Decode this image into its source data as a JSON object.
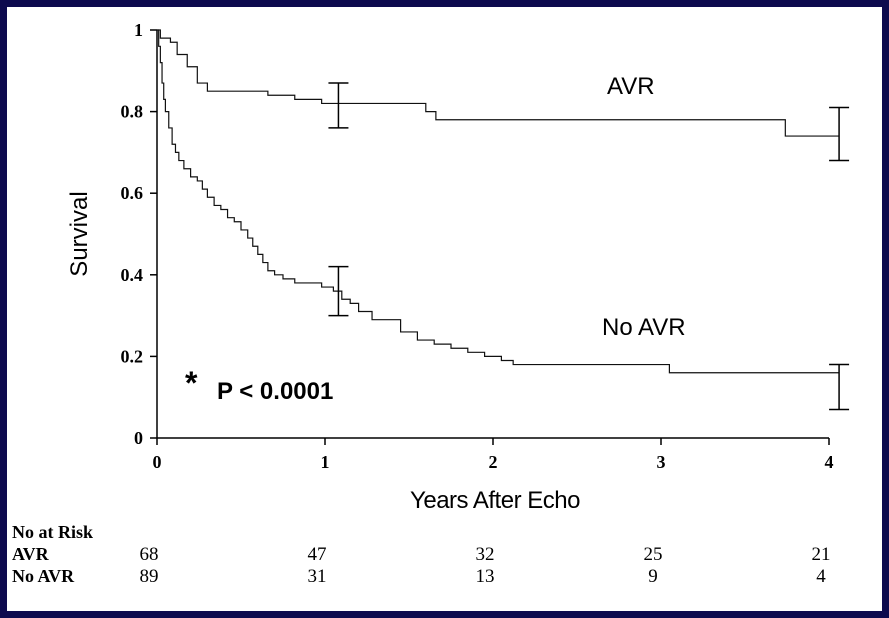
{
  "chart_data": {
    "type": "line",
    "xlabel": "Years After Echo",
    "ylabel": "Survival",
    "xlim": [
      0,
      4
    ],
    "ylim": [
      0,
      1
    ],
    "x_ticks": [
      "0",
      "1",
      "2",
      "3",
      "4"
    ],
    "y_ticks": [
      "0",
      "0.2",
      "0.4",
      "0.6",
      "0.8",
      "1"
    ],
    "grid": false,
    "series": [
      {
        "name": "AVR",
        "step": true,
        "points": [
          [
            0,
            1.0
          ],
          [
            0.02,
            0.98
          ],
          [
            0.08,
            0.97
          ],
          [
            0.12,
            0.94
          ],
          [
            0.18,
            0.91
          ],
          [
            0.24,
            0.87
          ],
          [
            0.3,
            0.85
          ],
          [
            0.5,
            0.85
          ],
          [
            0.66,
            0.84
          ],
          [
            0.82,
            0.83
          ],
          [
            0.98,
            0.82
          ],
          [
            1.6,
            0.8
          ],
          [
            1.66,
            0.78
          ],
          [
            3.68,
            0.78
          ],
          [
            3.74,
            0.74
          ],
          [
            4.06,
            0.74
          ]
        ],
        "error_bars": [
          {
            "x": 1.08,
            "low": 0.76,
            "high": 0.87
          },
          {
            "x": 4.06,
            "low": 0.68,
            "high": 0.81
          }
        ]
      },
      {
        "name": "No AVR",
        "step": true,
        "points": [
          [
            0,
            1.0
          ],
          [
            0.01,
            0.96
          ],
          [
            0.02,
            0.92
          ],
          [
            0.03,
            0.87
          ],
          [
            0.04,
            0.83
          ],
          [
            0.05,
            0.8
          ],
          [
            0.07,
            0.76
          ],
          [
            0.09,
            0.72
          ],
          [
            0.11,
            0.7
          ],
          [
            0.13,
            0.68
          ],
          [
            0.16,
            0.66
          ],
          [
            0.2,
            0.64
          ],
          [
            0.24,
            0.63
          ],
          [
            0.27,
            0.61
          ],
          [
            0.3,
            0.59
          ],
          [
            0.34,
            0.57
          ],
          [
            0.38,
            0.56
          ],
          [
            0.42,
            0.54
          ],
          [
            0.46,
            0.53
          ],
          [
            0.5,
            0.51
          ],
          [
            0.54,
            0.49
          ],
          [
            0.57,
            0.47
          ],
          [
            0.6,
            0.45
          ],
          [
            0.63,
            0.43
          ],
          [
            0.66,
            0.41
          ],
          [
            0.7,
            0.4
          ],
          [
            0.75,
            0.39
          ],
          [
            0.82,
            0.38
          ],
          [
            0.9,
            0.38
          ],
          [
            0.98,
            0.37
          ],
          [
            1.05,
            0.36
          ],
          [
            1.1,
            0.34
          ],
          [
            1.15,
            0.33
          ],
          [
            1.2,
            0.31
          ],
          [
            1.28,
            0.29
          ],
          [
            1.45,
            0.26
          ],
          [
            1.55,
            0.24
          ],
          [
            1.65,
            0.23
          ],
          [
            1.75,
            0.22
          ],
          [
            1.85,
            0.21
          ],
          [
            1.95,
            0.2
          ],
          [
            2.05,
            0.19
          ],
          [
            2.12,
            0.18
          ],
          [
            3.05,
            0.16
          ],
          [
            4.06,
            0.16
          ]
        ],
        "error_bars": [
          {
            "x": 1.08,
            "low": 0.3,
            "high": 0.42
          },
          {
            "x": 4.06,
            "low": 0.07,
            "high": 0.18
          }
        ]
      }
    ],
    "annotations": {
      "avr_label": "AVR",
      "noavr_label": "No AVR",
      "asterisk": "*",
      "p_value": "P < 0.0001"
    },
    "risk_table": {
      "header": "No at Risk",
      "rows": [
        {
          "label": "AVR",
          "values": [
            "68",
            "47",
            "32",
            "25",
            "21"
          ]
        },
        {
          "label": "No AVR",
          "values": [
            "89",
            "31",
            "13",
            "9",
            "4"
          ]
        }
      ]
    }
  }
}
